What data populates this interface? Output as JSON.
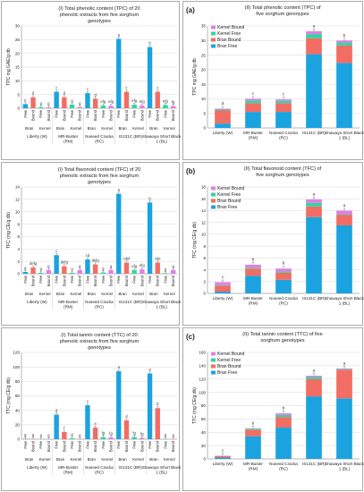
{
  "colors": {
    "bran_free": "#1BA3E0",
    "bran_bound": "#F26D63",
    "kernel_free": "#2FD6A0",
    "kernel_bound": "#E07FE6"
  },
  "chart_data": [
    {
      "type": "bar",
      "row": 0,
      "panel": "left",
      "title": "(I) Total phenolic content (TPC) of 20 phenolic extracts from five sorghum genotypes",
      "ylabel": "TPC mg GAE/g db",
      "ylim": [
        0,
        30
      ],
      "yticks": [
        0,
        5,
        10,
        15,
        20,
        25,
        30
      ],
      "genotypes": [
        "Liberty (W)",
        "MR-Buster (RM)",
        "Nuseed Cracka (RC)",
        "IS131C (BR)",
        "Shawaya Short Black 1 (BL)"
      ],
      "fractions": [
        "Free",
        "Bound",
        "Free",
        "Bound"
      ],
      "groups": [
        "Bran",
        "Kernel"
      ],
      "series": [
        {
          "name": "Liberty (W)",
          "values": [
            1.5,
            4.0,
            0.4,
            0.3
          ],
          "letters": [
            "e",
            "d",
            "g",
            "g"
          ]
        },
        {
          "name": "MR-Buster (RM)",
          "values": [
            6.0,
            4.0,
            1.3,
            0.4
          ],
          "letters": [
            "c",
            "d",
            "g",
            "g"
          ]
        },
        {
          "name": "Nuseed Cracka (RC)",
          "values": [
            5.5,
            3.5,
            1.0,
            0.9
          ],
          "letters": [
            "c",
            "d",
            "efg",
            "efg"
          ]
        },
        {
          "name": "IS131C (BR)",
          "values": [
            25.3,
            6.0,
            1.3,
            1.0
          ],
          "letters": [
            "a",
            "c",
            "efg",
            "efg"
          ]
        },
        {
          "name": "Shawaya Short Black 1 (BL)",
          "values": [
            22.3,
            6.0,
            1.2,
            0.8
          ],
          "letters": [
            "b",
            "c",
            "efg",
            "fg"
          ]
        }
      ]
    },
    {
      "type": "stacked-bar",
      "row": 0,
      "panel": "right",
      "tag": "(a)",
      "title": "(II) Total phenolic content (TPC) of five sorghum genotypes",
      "ylabel": "TPC mg GAE/g db",
      "ylim": [
        0,
        35
      ],
      "yticks": [
        0,
        5,
        10,
        15,
        20,
        25,
        30,
        35
      ],
      "categories": [
        "Liberty (W)",
        "MR-Buster (RM)",
        "Nuseed Cracka (RC)",
        "IS131C (BR)",
        "Shawaya Short Black 1 (BL)"
      ],
      "legend": [
        "Kernel Bound",
        "Kernel Free",
        "Bran Bound",
        "Bran Free"
      ],
      "series": [
        {
          "name": "Bran Free",
          "values": [
            1.5,
            5.5,
            5.5,
            25.3,
            22.3
          ]
        },
        {
          "name": "Bran Bound",
          "values": [
            4.5,
            3.0,
            3.0,
            5.5,
            6.0
          ]
        },
        {
          "name": "Kernel Free",
          "values": [
            0.3,
            0.9,
            0.8,
            1.4,
            1.0
          ]
        },
        {
          "name": "Kernel Bound",
          "values": [
            0.3,
            0.6,
            0.5,
            1.0,
            0.7
          ]
        }
      ],
      "letters": [
        "d",
        "c",
        "c",
        "a",
        "b"
      ]
    },
    {
      "type": "bar",
      "row": 1,
      "panel": "left",
      "title": "(I) Total flavonoid content (TFC) of 20 phenolic extracts from five sorghum genotypes",
      "ylabel": "TFC  (mg CE/g db)",
      "ylim": [
        0,
        14
      ],
      "yticks": [
        0,
        2,
        4,
        6,
        8,
        10,
        12,
        14
      ],
      "genotypes": [
        "Liberty (W)",
        "MR-Buster (RM)",
        "Nuseed Cracka (RC)",
        "IS131C (BR)",
        "Shawaya Short Black 1 (BL)"
      ],
      "fractions": [
        "Free",
        "Bound",
        "Free",
        "Bound"
      ],
      "groups": [
        "Bran",
        "Kernel"
      ],
      "series": [
        {
          "name": "Liberty (W)",
          "values": [
            0.3,
            1.0,
            0.15,
            0.6
          ],
          "letters": [
            "g",
            "defg",
            "g",
            "g"
          ]
        },
        {
          "name": "MR-Buster (RM)",
          "values": [
            3.0,
            1.2,
            0.15,
            0.6
          ],
          "letters": [
            "c",
            "defg",
            "g",
            "g"
          ]
        },
        {
          "name": "Nuseed Cracka (RC)",
          "values": [
            2.3,
            1.5,
            0.2,
            0.6
          ],
          "letters": [
            "cd",
            "defg",
            "g",
            "g"
          ]
        },
        {
          "name": "IS131C (BR)",
          "values": [
            12.9,
            1.8,
            0.6,
            0.7
          ],
          "letters": [
            "a",
            "cdef",
            "efg",
            "efg"
          ]
        },
        {
          "name": "Shawaya Short Black 1 (BL)",
          "values": [
            11.5,
            1.8,
            0.1,
            0.6
          ],
          "letters": [
            "b",
            "cde",
            "g",
            "g"
          ]
        }
      ]
    },
    {
      "type": "stacked-bar",
      "row": 1,
      "panel": "right",
      "tag": "(b)",
      "title": "(II) Total flavonoid content (TFC) of five sorghum genotypes",
      "ylabel": "TFC  (mg CE/g db)",
      "ylim": [
        0,
        18
      ],
      "yticks": [
        0,
        2,
        4,
        6,
        8,
        10,
        12,
        14,
        16,
        18
      ],
      "categories": [
        "Liberty (W)",
        "MR-Buster (RM)",
        "Nuseed Cracka (RC)",
        "IS131C (BR)",
        "Shawaya Short Black 1 (BL)"
      ],
      "legend": [
        "Kernel Bound",
        "Kernel Free",
        "Bran Bound",
        "Bran Free"
      ],
      "series": [
        {
          "name": "Bran Free",
          "values": [
            0.3,
            3.0,
            2.3,
            12.9,
            11.5
          ]
        },
        {
          "name": "Bran Bound",
          "values": [
            1.0,
            1.2,
            1.2,
            1.8,
            1.8
          ]
        },
        {
          "name": "Kernel Free",
          "values": [
            0.1,
            0.15,
            0.2,
            0.6,
            0.1
          ]
        },
        {
          "name": "Kernel Bound",
          "values": [
            0.5,
            0.5,
            0.5,
            0.6,
            0.6
          ]
        }
      ],
      "letters": [
        "c",
        "b",
        "b",
        "a",
        "a"
      ]
    },
    {
      "type": "bar",
      "row": 2,
      "panel": "left",
      "title": "(I) Total tannin content (TTC) of 20 phenolic extracts from five sorghum genotypes",
      "ylabel": "TTC (mg CE/g db)",
      "ylim": [
        0,
        120
      ],
      "yticks": [
        0,
        20,
        40,
        60,
        80,
        100,
        120
      ],
      "genotypes": [
        "Liberty (W)",
        "MR-Buster (RM)",
        "Nuseed Cracka (RC)",
        "IS131C (BR)",
        "Shawaya Short Black 1 (BL)"
      ],
      "fractions": [
        "Free",
        "Bound",
        "Free",
        "Bound"
      ],
      "groups": [
        "Bran",
        "Kernel"
      ],
      "series": [
        {
          "name": "Liberty (W)",
          "values": [
            0.5,
            0.5,
            0.3,
            0.2
          ],
          "letters": [
            "g",
            "g",
            "g",
            "g"
          ]
        },
        {
          "name": "MR-Buster (RM)",
          "values": [
            34,
            10,
            1.5,
            0.3
          ],
          "letters": [
            "d",
            "f",
            "g",
            "g"
          ]
        },
        {
          "name": "Nuseed Cracka (RC)",
          "values": [
            47,
            16,
            3,
            2.5
          ],
          "letters": [
            "c",
            "e",
            "fg",
            "fg"
          ]
        },
        {
          "name": "IS131C (BR)",
          "values": [
            94,
            26,
            3,
            2
          ],
          "letters": [
            "a",
            "d",
            "fg",
            "fg"
          ]
        },
        {
          "name": "Shawaya Short Black 1 (BL)",
          "values": [
            91,
            43,
            0.5,
            0.3
          ],
          "letters": [
            "a",
            "b",
            "g",
            "g"
          ]
        }
      ]
    },
    {
      "type": "stacked-bar",
      "row": 2,
      "panel": "right",
      "tag": "(c)",
      "title": "(II) Total tannin content (TTC) of five sorghum genotypes",
      "ylabel": "TTC (mg CE/g db)",
      "ylim": [
        0,
        160
      ],
      "yticks": [
        0,
        20,
        40,
        60,
        80,
        100,
        120,
        140,
        160
      ],
      "categories": [
        "Liberty (W)",
        "MR-Buster (RM)",
        "Nuseed Cracka (RC)",
        "IS131C (BR)",
        "Shawaya Short Black 1 (BL)"
      ],
      "legend": [
        "Kernel Bound",
        "Kernel Free",
        "Bran Bound",
        "Bran Free"
      ],
      "series": [
        {
          "name": "Bran Free",
          "values": [
            2,
            34,
            47,
            94,
            91
          ]
        },
        {
          "name": "Bran Bound",
          "values": [
            2,
            10,
            16,
            26,
            43
          ]
        },
        {
          "name": "Kernel Free",
          "values": [
            0.5,
            1.5,
            3,
            3,
            1
          ]
        },
        {
          "name": "Kernel Bound",
          "values": [
            0.3,
            0.5,
            2.5,
            2,
            1
          ]
        }
      ],
      "letters": [
        "c",
        "b",
        "b",
        "a",
        "a"
      ]
    }
  ]
}
